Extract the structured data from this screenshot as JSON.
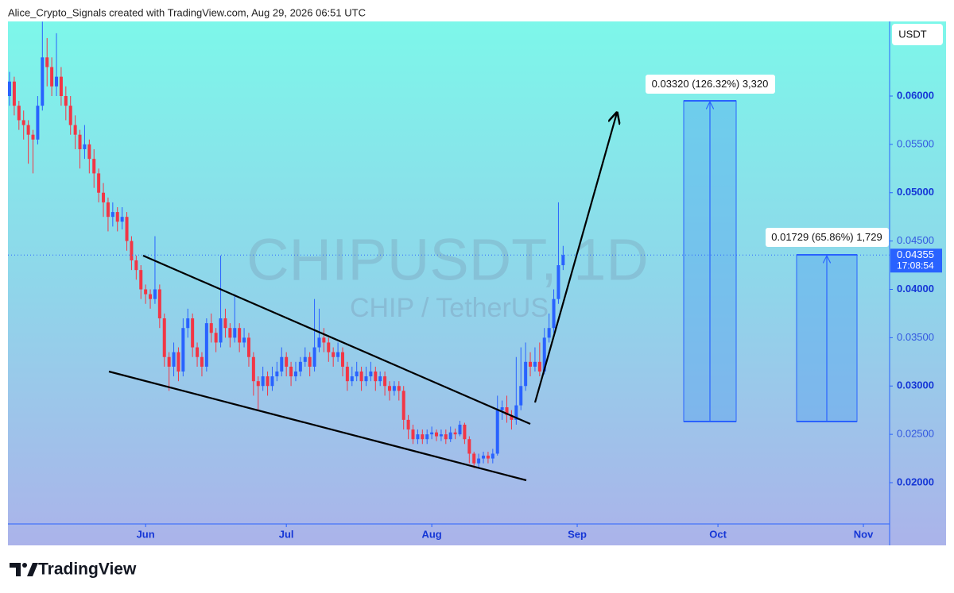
{
  "chart_data": {
    "type": "candlestick",
    "title": "Alice_Crypto_Signals created with TradingView.com, Aug 29, 2026 06:51 UTC",
    "watermark_symbol": "CHIPUSDT, 1D",
    "watermark_name": "CHIP / TetherUS",
    "currency": "USDT",
    "brand": "TradingView",
    "up_color": "#2962ff",
    "down_color": "#f23645",
    "xlim": [
      -0.34,
      187.42
    ],
    "ylim": [
      0.01573,
      0.06772
    ],
    "xticks": [
      {
        "value": 29,
        "label": "Jun"
      },
      {
        "value": 59,
        "label": "Jul"
      },
      {
        "value": 90,
        "label": "Aug"
      },
      {
        "value": 121,
        "label": "Sep"
      },
      {
        "value": 151,
        "label": "Oct"
      },
      {
        "value": 182,
        "label": "Nov"
      }
    ],
    "yticks": [
      {
        "value": 0.02,
        "label": "0.02000"
      },
      {
        "value": 0.025,
        "label": "0.02500"
      },
      {
        "value": 0.03,
        "label": "0.03000"
      },
      {
        "value": 0.035,
        "label": "0.03500"
      },
      {
        "value": 0.04,
        "label": "0.04000"
      },
      {
        "value": 0.045,
        "label": "0.04500"
      },
      {
        "value": 0.05,
        "label": "0.05000"
      },
      {
        "value": 0.055,
        "label": "0.05500"
      },
      {
        "value": 0.06,
        "label": "0.06000"
      }
    ],
    "last_price": {
      "value": 0.04355,
      "label": "0.04355"
    },
    "countdown": "17:08:54",
    "annotations": [
      "0.03320 (126.32%) 3,320",
      "0.01729 (65.86%) 1,729"
    ],
    "open": [
      0.06,
      0.0615,
      0.059,
      0.0575,
      0.057,
      0.056,
      0.0555,
      0.059,
      0.064,
      0.063,
      0.061,
      0.062,
      0.06,
      0.059,
      0.057,
      0.056,
      0.0545,
      0.055,
      0.0535,
      0.052,
      0.05,
      0.049,
      0.0475,
      0.048,
      0.047,
      0.0475,
      0.045,
      0.043,
      0.042,
      0.04,
      0.0395,
      0.039,
      0.04,
      0.037,
      0.033,
      0.032,
      0.0335,
      0.0315,
      0.036,
      0.037,
      0.034,
      0.033,
      0.032,
      0.0365,
      0.0355,
      0.0345,
      0.037,
      0.036,
      0.035,
      0.036,
      0.0345,
      0.035,
      0.033,
      0.0305,
      0.03,
      0.031,
      0.03,
      0.031,
      0.0315,
      0.033,
      0.032,
      0.031,
      0.0315,
      0.0325,
      0.033,
      0.032,
      0.034,
      0.035,
      0.0345,
      0.0335,
      0.033,
      0.0335,
      0.032,
      0.0305,
      0.031,
      0.0315,
      0.0305,
      0.031,
      0.0315,
      0.0305,
      0.031,
      0.03,
      0.0295,
      0.03,
      0.0295,
      0.0265,
      0.0255,
      0.0245,
      0.025,
      0.0245,
      0.025,
      0.0252,
      0.0248,
      0.025,
      0.0245,
      0.0252,
      0.025,
      0.026,
      0.0245,
      0.023,
      0.022,
      0.0225,
      0.0228,
      0.0225,
      0.023,
      0.0275,
      0.0278,
      0.027,
      0.0265,
      0.028,
      0.03,
      0.0325,
      0.032,
      0.0325,
      0.0315,
      0.035,
      0.036,
      0.039,
      0.0425
    ],
    "high": [
      0.0625,
      0.062,
      0.0595,
      0.0585,
      0.0575,
      0.0565,
      0.06,
      0.0677,
      0.066,
      0.064,
      0.0665,
      0.063,
      0.061,
      0.06,
      0.058,
      0.0565,
      0.057,
      0.0555,
      0.0545,
      0.0525,
      0.051,
      0.0495,
      0.049,
      0.0485,
      0.0485,
      0.048,
      0.0455,
      0.0435,
      0.0425,
      0.0405,
      0.04,
      0.0455,
      0.0405,
      0.0375,
      0.0335,
      0.0345,
      0.034,
      0.037,
      0.038,
      0.0375,
      0.0345,
      0.0335,
      0.037,
      0.0375,
      0.036,
      0.0435,
      0.038,
      0.0365,
      0.0395,
      0.0365,
      0.036,
      0.0355,
      0.0335,
      0.031,
      0.032,
      0.0315,
      0.032,
      0.0325,
      0.034,
      0.0335,
      0.0325,
      0.0325,
      0.033,
      0.034,
      0.0335,
      0.039,
      0.038,
      0.036,
      0.035,
      0.034,
      0.0345,
      0.034,
      0.0325,
      0.032,
      0.0325,
      0.032,
      0.032,
      0.0325,
      0.032,
      0.0315,
      0.0315,
      0.0305,
      0.0305,
      0.0305,
      0.03,
      0.027,
      0.026,
      0.0255,
      0.0255,
      0.0255,
      0.0258,
      0.0255,
      0.0255,
      0.0255,
      0.0258,
      0.0256,
      0.0264,
      0.0262,
      0.0248,
      0.0232,
      0.023,
      0.0232,
      0.0232,
      0.0235,
      0.029,
      0.0285,
      0.029,
      0.0275,
      0.033,
      0.034,
      0.0345,
      0.0335,
      0.034,
      0.0345,
      0.036,
      0.0375,
      0.04,
      0.049,
      0.0445
    ],
    "low": [
      0.059,
      0.058,
      0.0565,
      0.0555,
      0.053,
      0.052,
      0.055,
      0.0585,
      0.061,
      0.06,
      0.06,
      0.059,
      0.0575,
      0.056,
      0.0545,
      0.0525,
      0.0535,
      0.052,
      0.0505,
      0.049,
      0.0475,
      0.046,
      0.0465,
      0.046,
      0.0462,
      0.044,
      0.042,
      0.041,
      0.039,
      0.0385,
      0.038,
      0.0385,
      0.036,
      0.032,
      0.0295,
      0.031,
      0.0305,
      0.031,
      0.035,
      0.033,
      0.032,
      0.031,
      0.0315,
      0.0345,
      0.0335,
      0.034,
      0.035,
      0.034,
      0.0345,
      0.0335,
      0.034,
      0.032,
      0.029,
      0.0275,
      0.0295,
      0.029,
      0.0295,
      0.0305,
      0.031,
      0.031,
      0.03,
      0.0305,
      0.031,
      0.032,
      0.031,
      0.0315,
      0.0335,
      0.0335,
      0.0325,
      0.032,
      0.0325,
      0.031,
      0.0295,
      0.03,
      0.0305,
      0.0295,
      0.03,
      0.0305,
      0.0295,
      0.03,
      0.029,
      0.0285,
      0.029,
      0.0285,
      0.0255,
      0.0245,
      0.024,
      0.024,
      0.024,
      0.024,
      0.0245,
      0.0243,
      0.0243,
      0.024,
      0.0242,
      0.0245,
      0.0248,
      0.024,
      0.022,
      0.0215,
      0.0216,
      0.022,
      0.022,
      0.022,
      0.0228,
      0.0265,
      0.0262,
      0.0255,
      0.026,
      0.0275,
      0.0295,
      0.031,
      0.0315,
      0.031,
      0.0312,
      0.0345,
      0.0355,
      0.0385,
      0.042
    ],
    "close": [
      0.0615,
      0.059,
      0.0575,
      0.057,
      0.056,
      0.0555,
      0.059,
      0.064,
      0.063,
      0.061,
      0.062,
      0.06,
      0.059,
      0.057,
      0.056,
      0.0545,
      0.055,
      0.0535,
      0.052,
      0.05,
      0.049,
      0.0475,
      0.048,
      0.047,
      0.0475,
      0.045,
      0.043,
      0.042,
      0.04,
      0.0395,
      0.039,
      0.04,
      0.037,
      0.033,
      0.032,
      0.0335,
      0.0315,
      0.036,
      0.037,
      0.034,
      0.033,
      0.032,
      0.0365,
      0.0355,
      0.0345,
      0.037,
      0.036,
      0.035,
      0.036,
      0.0345,
      0.035,
      0.033,
      0.0305,
      0.03,
      0.031,
      0.03,
      0.031,
      0.0315,
      0.033,
      0.032,
      0.031,
      0.0315,
      0.0325,
      0.033,
      0.032,
      0.034,
      0.035,
      0.0345,
      0.0335,
      0.033,
      0.0335,
      0.032,
      0.0305,
      0.031,
      0.0315,
      0.0305,
      0.031,
      0.0315,
      0.0305,
      0.031,
      0.03,
      0.0295,
      0.03,
      0.0295,
      0.0265,
      0.0255,
      0.0245,
      0.025,
      0.0245,
      0.025,
      0.0252,
      0.0248,
      0.025,
      0.0245,
      0.0252,
      0.025,
      0.026,
      0.0245,
      0.023,
      0.022,
      0.0225,
      0.0228,
      0.0225,
      0.023,
      0.0275,
      0.0278,
      0.027,
      0.0265,
      0.028,
      0.03,
      0.0325,
      0.032,
      0.0325,
      0.0315,
      0.035,
      0.036,
      0.039,
      0.0425,
      0.04355
    ]
  }
}
